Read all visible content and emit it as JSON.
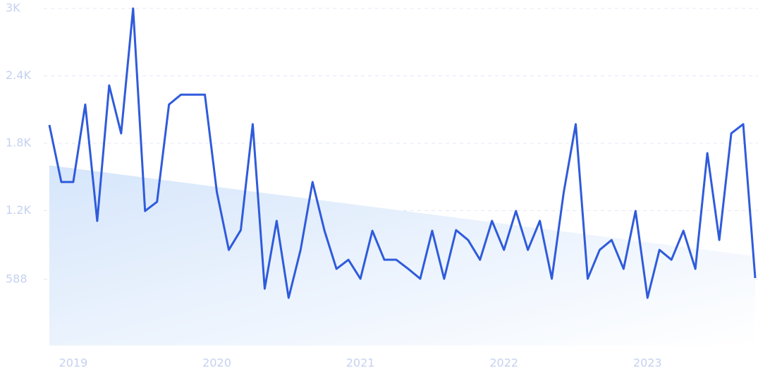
{
  "chart_data": {
    "type": "line",
    "categories": [
      null,
      null,
      "2019",
      null,
      null,
      null,
      null,
      null,
      null,
      null,
      null,
      null,
      null,
      null,
      "2020",
      null,
      null,
      null,
      null,
      null,
      null,
      null,
      null,
      null,
      null,
      null,
      "2021",
      null,
      null,
      null,
      null,
      null,
      null,
      null,
      null,
      null,
      null,
      null,
      "2022",
      null,
      null,
      null,
      null,
      null,
      null,
      null,
      null,
      null,
      null,
      null,
      "2023",
      null,
      null,
      null,
      null,
      null,
      null,
      null,
      null,
      null
    ],
    "series": [
      {
        "color": "#2f5bdb",
        "values": [
          1963,
          1455,
          1455,
          2145,
          1109,
          2315,
          1888,
          3000,
          1197,
          1279,
          2145,
          2233,
          2233,
          2233,
          1366,
          851,
          1027,
          1970,
          506,
          1109,
          424,
          851,
          1455,
          1021,
          682,
          763,
          594,
          1021,
          763,
          763,
          682,
          594,
          1021,
          594,
          1027,
          939,
          763,
          1109,
          851,
          1197,
          851,
          1109,
          594,
          1366,
          1970,
          594,
          851,
          939,
          682,
          1197,
          424,
          851,
          763,
          1021,
          682,
          1712,
          939,
          1888,
          1970,
          600
        ]
      }
    ],
    "trend": [
      1604,
      795
    ],
    "ylim": [
      0,
      3000
    ],
    "yticks": [
      588,
      {
        "value": 1200,
        "label": "1.2K"
      },
      {
        "value": 1800,
        "label": "1.8K"
      },
      {
        "value": 2400,
        "label": "2.4K"
      },
      {
        "value": 3000,
        "label": "3K"
      }
    ],
    "grid": true
  }
}
